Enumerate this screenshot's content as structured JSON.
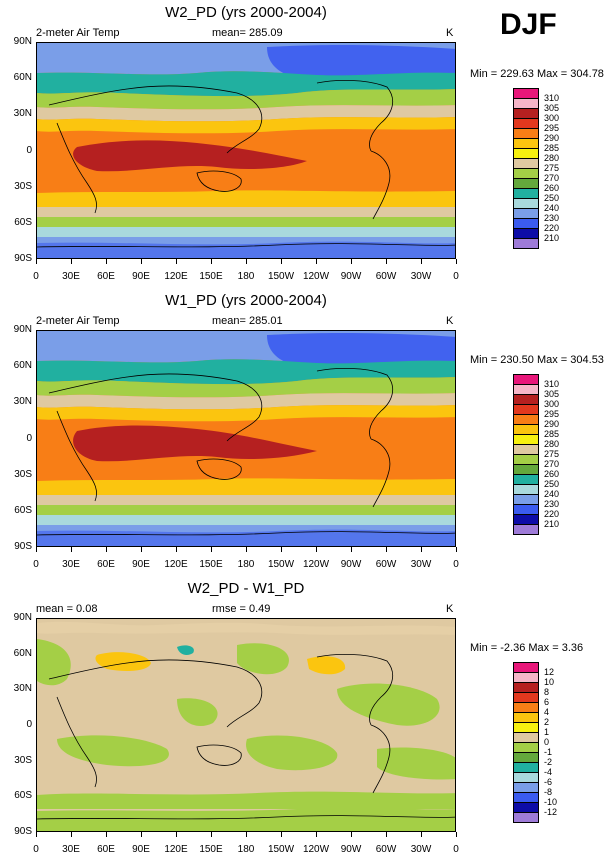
{
  "season": "DJF",
  "units": "K",
  "x_ticks": [
    "0",
    "30E",
    "60E",
    "90E",
    "120E",
    "150E",
    "180",
    "150W",
    "120W",
    "90W",
    "60W",
    "30W",
    "0"
  ],
  "y_ticks": [
    "90N",
    "60N",
    "30N",
    "0",
    "30S",
    "60S",
    "90S"
  ],
  "panels": [
    {
      "title": "W2_PD (yrs 2000-2004)",
      "left_label": "2-meter Air Temp",
      "mean_label": "mean= 285.09",
      "units": "K",
      "minmax": "Min = 229.63 Max = 304.78"
    },
    {
      "title": "W1_PD (yrs 2000-2004)",
      "left_label": "2-meter Air Temp",
      "mean_label": "mean= 285.01",
      "units": "K",
      "minmax": "Min = 230.50 Max = 304.53"
    },
    {
      "title": "W2_PD - W1_PD",
      "left_label": "mean =   0.08",
      "mean_label": "rmse =   0.49",
      "units": "K",
      "minmax": "Min =  -2.36 Max =   3.36"
    }
  ],
  "chart_data": [
    {
      "type": "heatmap",
      "title": "W2_PD (yrs 2000-2004)",
      "variable": "2-meter Air Temp",
      "units": "K",
      "mean": 285.09,
      "min": 229.63,
      "max": 304.78,
      "x_range": [
        0,
        360
      ],
      "y_range": [
        -90,
        90
      ],
      "levels": [
        210,
        220,
        230,
        240,
        250,
        260,
        270,
        275,
        280,
        285,
        290,
        295,
        300,
        305,
        310
      ]
    },
    {
      "type": "heatmap",
      "title": "W1_PD (yrs 2000-2004)",
      "variable": "2-meter Air Temp",
      "units": "K",
      "mean": 285.01,
      "min": 230.5,
      "max": 304.53,
      "x_range": [
        0,
        360
      ],
      "y_range": [
        -90,
        90
      ],
      "levels": [
        210,
        220,
        230,
        240,
        250,
        260,
        270,
        275,
        280,
        285,
        290,
        295,
        300,
        305,
        310
      ]
    },
    {
      "type": "heatmap",
      "title": "W2_PD - W1_PD",
      "units": "K",
      "mean": 0.08,
      "rmse": 0.49,
      "min": -2.36,
      "max": 3.36,
      "x_range": [
        0,
        360
      ],
      "y_range": [
        -90,
        90
      ],
      "levels": [
        -12,
        -10,
        -8,
        -6,
        -4,
        -2,
        -1,
        0,
        1,
        2,
        4,
        6,
        8,
        10,
        12
      ]
    }
  ],
  "legends": {
    "temp": {
      "labels": [
        "310",
        "305",
        "300",
        "295",
        "290",
        "285",
        "280",
        "275",
        "270",
        "260",
        "250",
        "240",
        "230",
        "220",
        "210"
      ],
      "colors": [
        "#e8177a",
        "#f6b6c8",
        "#b52020",
        "#e2381e",
        "#f87e16",
        "#fbc50f",
        "#f7f110",
        "#dfc9a1",
        "#a4cf46",
        "#64a83c",
        "#21b0a0",
        "#a9d9dd",
        "#7a9ee8",
        "#3b5bef",
        "#0d0ca7",
        "#9e7bd8"
      ]
    },
    "diff": {
      "labels": [
        "12",
        "10",
        "8",
        "6",
        "4",
        "2",
        "1",
        "0",
        "-1",
        "-2",
        "-4",
        "-6",
        "-8",
        "-10",
        "-12"
      ],
      "colors": [
        "#e8177a",
        "#f6b6c8",
        "#b52020",
        "#e2381e",
        "#f87e16",
        "#fbc50f",
        "#f7f110",
        "#dfc9a1",
        "#a4cf46",
        "#64a83c",
        "#21b0a0",
        "#a9d9dd",
        "#7a9ee8",
        "#3b5bef",
        "#0d0ca7",
        "#9e7bd8"
      ]
    }
  }
}
